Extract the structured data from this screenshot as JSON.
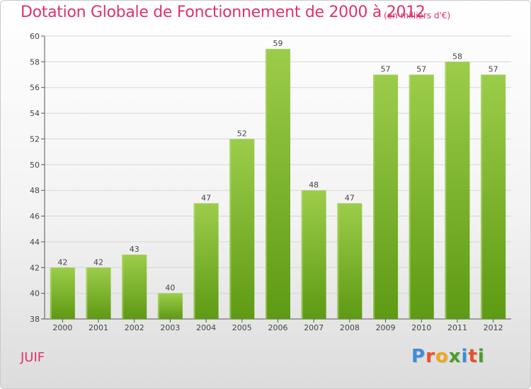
{
  "header": {
    "title": "Dotation Globale de Fonctionnement de 2000 à 2012",
    "subtitle": "(en milliers d'€)"
  },
  "footer": {
    "commune": "JUIF",
    "logo_letters": [
      "P",
      "r",
      "o",
      "x",
      "i",
      "t",
      "i"
    ],
    "logo_colors": [
      "#3a8fd8",
      "#e8502a",
      "#f0a818",
      "#4a9d2a",
      "#3a8fd8",
      "#e8502a",
      "#4a9d2a"
    ]
  },
  "chart_data": {
    "type": "bar",
    "categories": [
      "2000",
      "2001",
      "2002",
      "2003",
      "2004",
      "2005",
      "2006",
      "2007",
      "2008",
      "2009",
      "2010",
      "2011",
      "2012"
    ],
    "values": [
      42,
      42,
      43,
      40,
      47,
      52,
      59,
      48,
      47,
      57,
      57,
      58,
      57
    ],
    "ylim": [
      38,
      60
    ],
    "yticks": [
      38,
      40,
      42,
      44,
      46,
      48,
      50,
      52,
      54,
      56,
      58,
      60
    ],
    "grid": true,
    "bar_color_top": "#9ccd4a",
    "bar_color_bottom": "#5e9a14"
  }
}
